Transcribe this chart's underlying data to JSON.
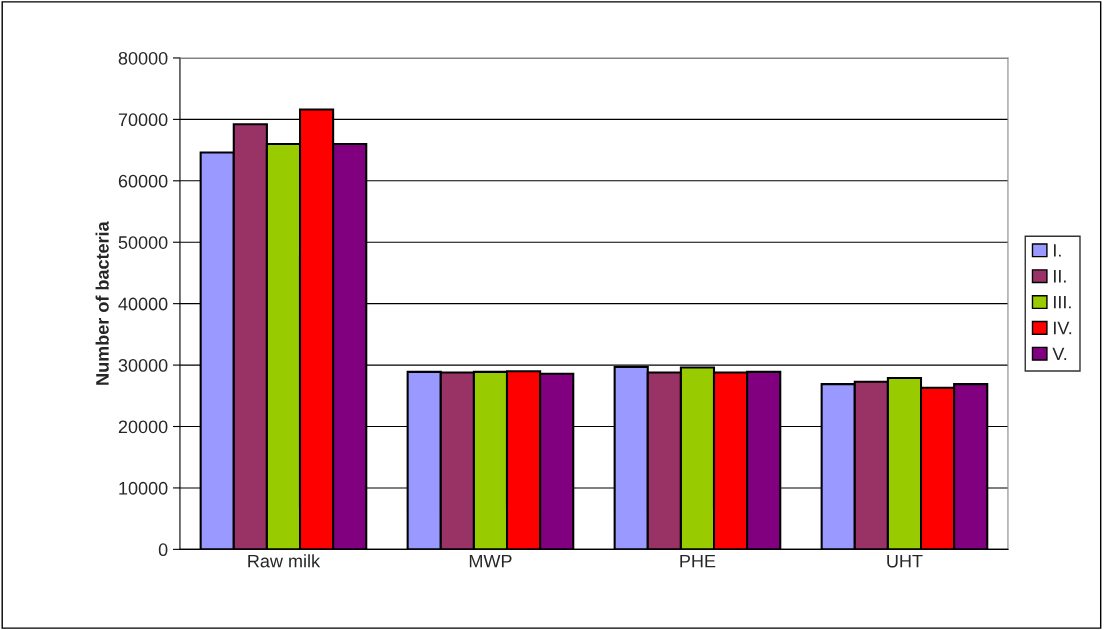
{
  "chart_data": {
    "type": "bar",
    "ylabel": "Number of bacteria",
    "categories": [
      "Raw milk",
      "MWP",
      "PHE",
      "UHT"
    ],
    "series": [
      {
        "name": "I.",
        "color": "#9999ff",
        "values": [
          64600,
          28900,
          29700,
          26900
        ]
      },
      {
        "name": "II.",
        "color": "#993366",
        "values": [
          69200,
          28800,
          28800,
          27300
        ]
      },
      {
        "name": "III.",
        "color": "#99cc00",
        "values": [
          66000,
          28900,
          29600,
          27900
        ]
      },
      {
        "name": "IV.",
        "color": "#ff0000",
        "values": [
          71600,
          29000,
          28800,
          26300
        ]
      },
      {
        "name": "V.",
        "color": "#800080",
        "values": [
          66000,
          28600,
          28900,
          26900
        ]
      }
    ],
    "ylim": [
      0,
      80000
    ],
    "yticks": [
      0,
      10000,
      20000,
      30000,
      40000,
      50000,
      60000,
      70000,
      80000
    ],
    "grid": "y",
    "legend": "right"
  }
}
